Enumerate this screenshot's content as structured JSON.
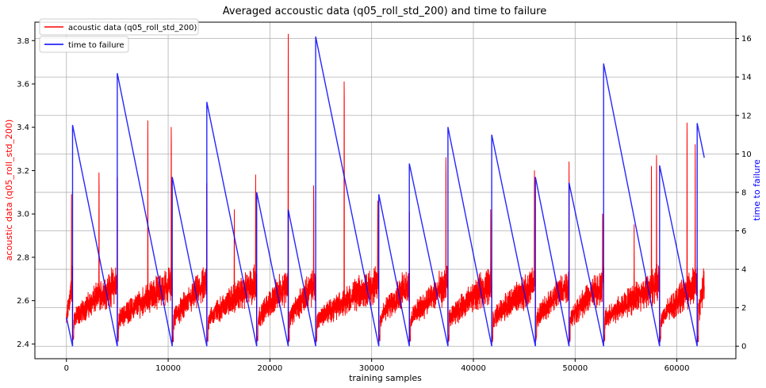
{
  "chart_data": {
    "type": "line",
    "title": "Averaged accoustic data (q05_roll_std_200) and time to failure",
    "xlabel": "training samples",
    "ylabel_left": "acoustic data (q05_roll_std_200)",
    "ylabel_right": "time to failure",
    "xlim": [
      -3100,
      65800
    ],
    "ylim_left": [
      2.332,
      3.885
    ],
    "ylim_right": [
      -0.65,
      16.85
    ],
    "x_ticks": [
      0,
      10000,
      20000,
      30000,
      40000,
      50000,
      60000
    ],
    "y_left_ticks": [
      2.4,
      2.6,
      2.8,
      3.0,
      3.2,
      3.4,
      3.6,
      3.8
    ],
    "y_right_ticks": [
      0,
      2,
      4,
      6,
      8,
      10,
      12,
      14,
      16
    ],
    "grid": true,
    "legend": [
      "acoustic data (q05_roll_std_200)",
      "time to failure"
    ],
    "legend_location": "upper-left",
    "colors": {
      "acoustic": "#ff0000",
      "ttf": "#0000ff",
      "left_axis_label": "#ff0000",
      "right_axis_label": "#0000ff"
    },
    "series": [
      {
        "name": "acoustic data (q05_roll_std_200)",
        "axis": "left",
        "x_range": [
          0,
          62700
        ],
        "base_value": 2.5,
        "ramp_amplitude": 0.18,
        "noise_amplitude": 0.09,
        "drop_value": 2.41,
        "spikes": [
          {
            "x": 500,
            "y": 3.09
          },
          {
            "x": 3200,
            "y": 3.19
          },
          {
            "x": 5000,
            "y": 3.17
          },
          {
            "x": 8000,
            "y": 3.43
          },
          {
            "x": 10300,
            "y": 3.4
          },
          {
            "x": 13800,
            "y": 3.14
          },
          {
            "x": 16500,
            "y": 3.02
          },
          {
            "x": 18600,
            "y": 3.18
          },
          {
            "x": 21800,
            "y": 3.83
          },
          {
            "x": 24300,
            "y": 3.13
          },
          {
            "x": 27300,
            "y": 3.61
          },
          {
            "x": 30600,
            "y": 3.06
          },
          {
            "x": 33700,
            "y": 3.01
          },
          {
            "x": 37300,
            "y": 3.26
          },
          {
            "x": 41700,
            "y": 3.02
          },
          {
            "x": 46000,
            "y": 3.2
          },
          {
            "x": 49400,
            "y": 3.24
          },
          {
            "x": 52700,
            "y": 3.0
          },
          {
            "x": 55800,
            "y": 2.95
          },
          {
            "x": 57500,
            "y": 3.22
          },
          {
            "x": 58000,
            "y": 3.27
          },
          {
            "x": 61000,
            "y": 3.42
          },
          {
            "x": 61800,
            "y": 3.32
          }
        ]
      },
      {
        "name": "time to failure",
        "axis": "right",
        "points": [
          [
            0,
            1.5
          ],
          [
            600,
            0
          ],
          [
            600,
            11.5
          ],
          [
            5000,
            0
          ],
          [
            5000,
            14.2
          ],
          [
            10400,
            0
          ],
          [
            10400,
            8.8
          ],
          [
            13800,
            0
          ],
          [
            13800,
            12.7
          ],
          [
            18700,
            0
          ],
          [
            18700,
            8.0
          ],
          [
            21800,
            0
          ],
          [
            21800,
            7.1
          ],
          [
            24500,
            0
          ],
          [
            24500,
            16.1
          ],
          [
            30700,
            0
          ],
          [
            30700,
            7.9
          ],
          [
            33700,
            0
          ],
          [
            33700,
            9.5
          ],
          [
            37500,
            0
          ],
          [
            37500,
            11.4
          ],
          [
            41800,
            0
          ],
          [
            41800,
            11.0
          ],
          [
            46100,
            0
          ],
          [
            46100,
            8.8
          ],
          [
            49400,
            0
          ],
          [
            49400,
            8.5
          ],
          [
            52800,
            0
          ],
          [
            52800,
            14.7
          ],
          [
            58300,
            0
          ],
          [
            58300,
            9.4
          ],
          [
            62000,
            0
          ],
          [
            62000,
            11.6
          ],
          [
            62700,
            9.8
          ]
        ]
      }
    ]
  }
}
